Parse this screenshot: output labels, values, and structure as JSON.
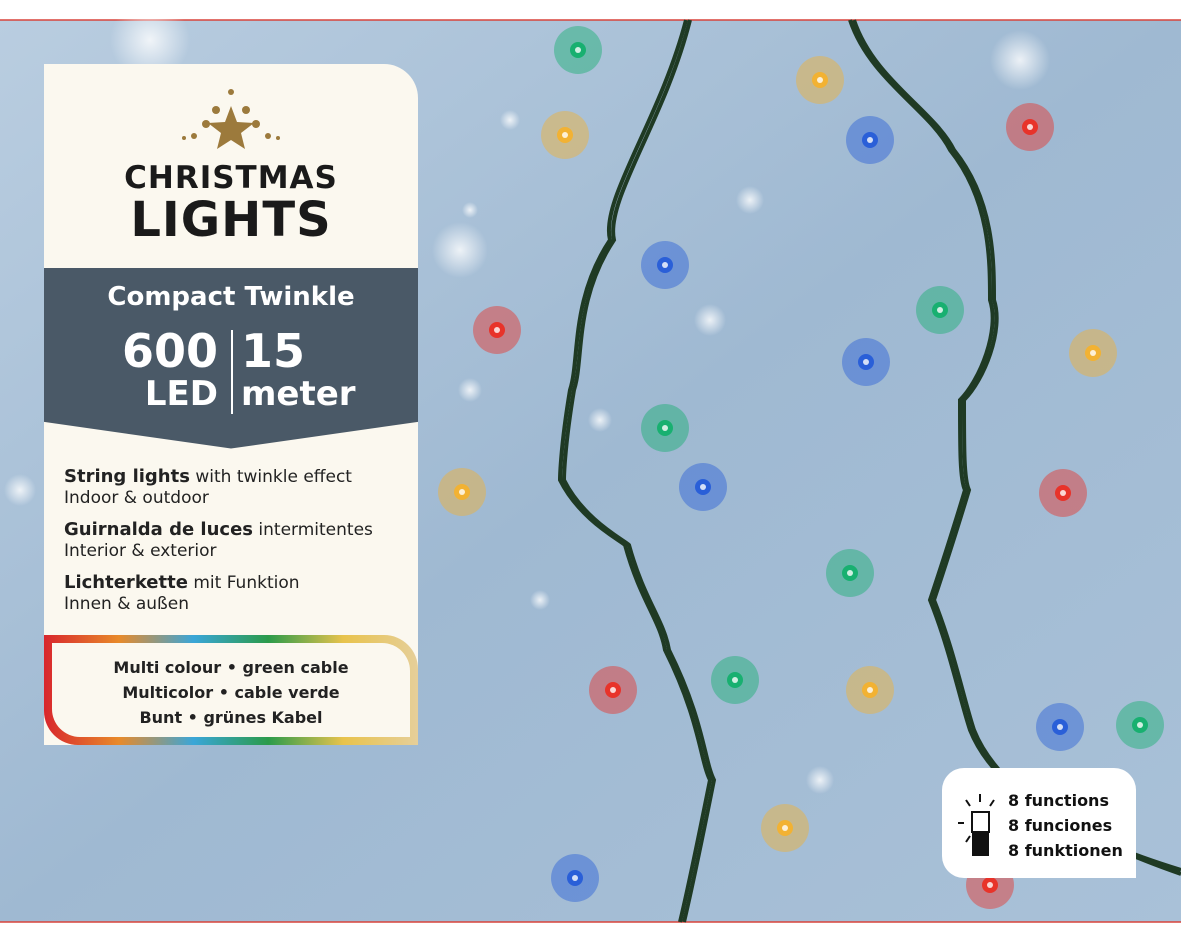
{
  "header": {
    "title_line1": "CHRISTMAS",
    "title_line2": "LIGHTS"
  },
  "banner": {
    "product": "Compact Twinkle",
    "count": "600",
    "count_unit": "LED",
    "length": "15",
    "length_unit": "meter"
  },
  "descriptions": [
    {
      "bold": "String lights",
      "rest": "with twinkle effect",
      "line2": "Indoor & outdoor"
    },
    {
      "bold": "Guirnalda de luces",
      "rest": "intermitentes",
      "line2": "Interior & exterior"
    },
    {
      "bold": "Lichterkette",
      "rest": "mit Funktion",
      "line2": "Innen & außen"
    }
  ],
  "colour_box": {
    "lines": [
      "Multi colour • green cable",
      "Multicolor • cable verde",
      "Bunt • grünes Kabel"
    ]
  },
  "functions": {
    "lines": [
      "8 functions",
      "8 funciones",
      "8 funktionen"
    ]
  }
}
